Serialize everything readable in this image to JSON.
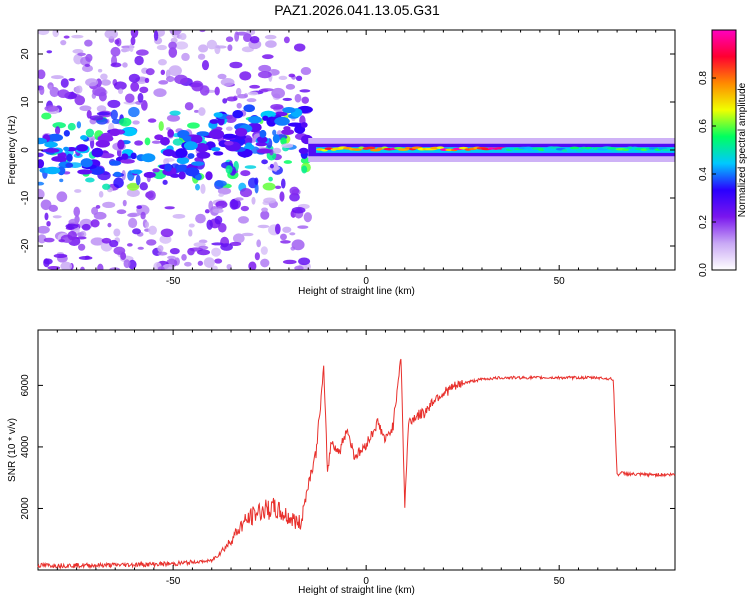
{
  "title": "PAZ1.2026.041.13.05.G31",
  "chart_data": [
    {
      "type": "heatmap",
      "xlabel": "Height of straight line (km)",
      "ylabel": "Frequency (Hz)",
      "xlim": [
        -85,
        80
      ],
      "ylim": [
        -25,
        25
      ],
      "x_ticks": [
        -50,
        0,
        50
      ],
      "y_ticks": [
        -20,
        -10,
        0,
        10,
        20
      ],
      "colorbar": {
        "label": "Normalized spectral amplitude",
        "range": [
          0,
          1
        ],
        "ticks": [
          0.0,
          0.2,
          0.4,
          0.6,
          0.8
        ],
        "tick_labels": [
          "0.0",
          "0.2",
          "0.4",
          "0.6",
          "0.8"
        ],
        "colormap": [
          "#ffffff",
          "#c9a9f5",
          "#7a16ee",
          "#2a00ff",
          "#00c8ff",
          "#00ff60",
          "#f0ff00",
          "#ff8a00",
          "#ff0030",
          "#ff00c0"
        ]
      },
      "features": [
        {
          "region": "h < -15 km",
          "description": "scattered noise",
          "freq_range": [
            -25,
            25
          ]
        },
        {
          "region": "h > -15 km",
          "description": "narrow line near 0 Hz",
          "peak_amplitude": 1.0
        }
      ]
    },
    {
      "type": "line",
      "xlabel": "Height of straight line (km)",
      "ylabel": "SNR (10 * v/v)",
      "xlim": [
        -85,
        80
      ],
      "ylim": [
        0,
        7800
      ],
      "x_ticks": [
        -50,
        0,
        50
      ],
      "y_ticks": [
        2000,
        4000,
        6000
      ],
      "color": "#e8302c",
      "x": [
        -85,
        -70,
        -50,
        -40,
        -36,
        -32,
        -28,
        -24,
        -20,
        -17,
        -15,
        -13,
        -11,
        -10,
        -9,
        -7,
        -5,
        -3,
        -1,
        1,
        3,
        5,
        7,
        9,
        10,
        11,
        13,
        15,
        18,
        22,
        26,
        30,
        35,
        40,
        50,
        60,
        64,
        65,
        66,
        70,
        75,
        80
      ],
      "values": [
        150,
        150,
        200,
        300,
        800,
        1500,
        1900,
        2000,
        1700,
        1500,
        2800,
        3800,
        6500,
        3200,
        4200,
        3800,
        4600,
        3700,
        3900,
        4300,
        4800,
        4200,
        4700,
        7000,
        2100,
        4800,
        5000,
        5100,
        5600,
        5900,
        6100,
        6200,
        6250,
        6250,
        6250,
        6250,
        6200,
        3100,
        3150,
        3100,
        3100,
        3100
      ]
    }
  ]
}
